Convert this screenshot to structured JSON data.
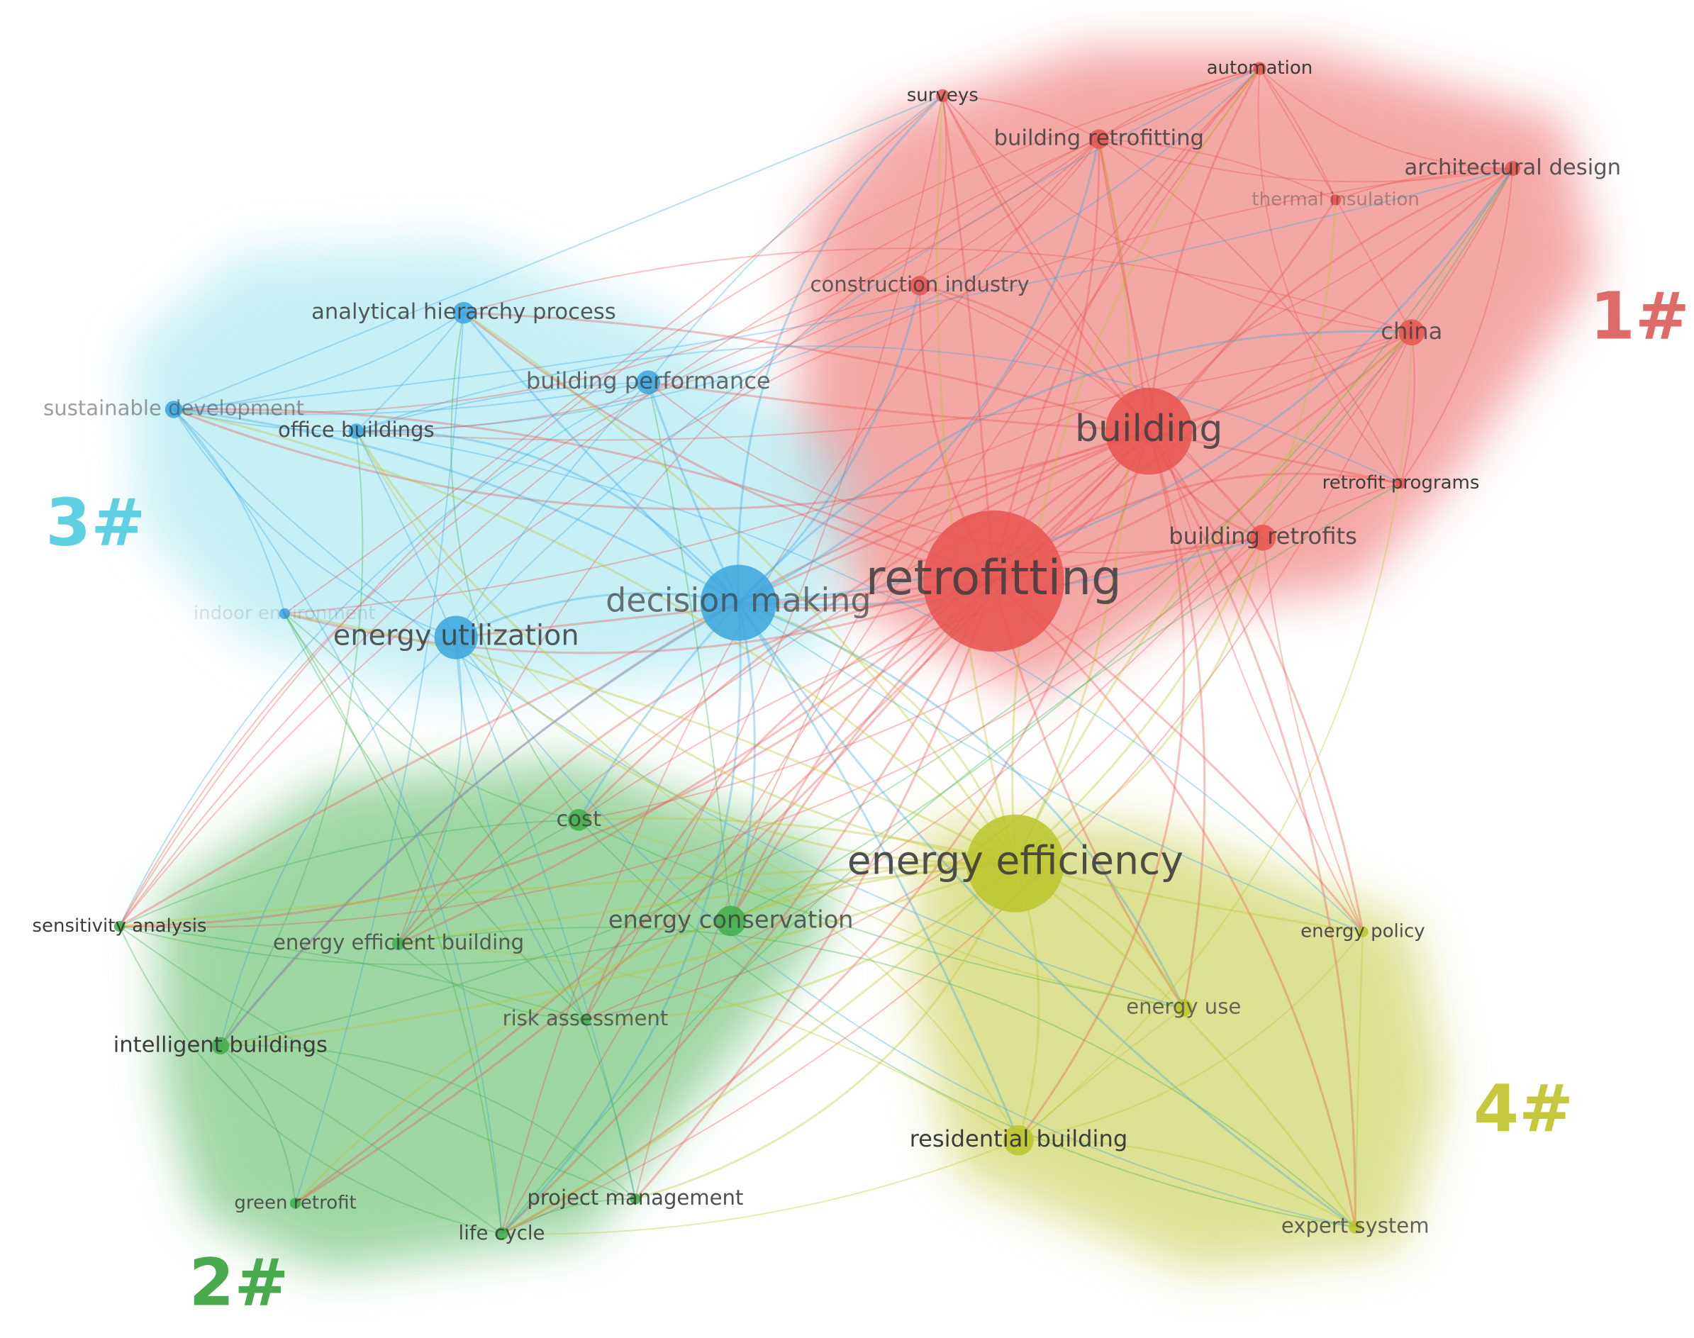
{
  "clusters": [
    {
      "label": "1#",
      "color": "#e8534f",
      "nodes": [
        "retrofitting",
        "building",
        "automation",
        "surveys",
        "building retrofitting",
        "architectural design",
        "thermal insulation",
        "construction industry",
        "china",
        "retrofit programs",
        "building retrofits"
      ]
    },
    {
      "label": "2#",
      "color": "#3fae4b",
      "nodes": [
        "cost",
        "sensitivity analysis",
        "energy efficient building",
        "energy conservation",
        "risk assessment",
        "intelligent buildings",
        "green retrofit",
        "life cycle",
        "project management"
      ]
    },
    {
      "label": "3#",
      "color": "#3aa6de",
      "nodes": [
        "analytical hierarchy process",
        "building performance",
        "sustainable development",
        "office buildings",
        "decision making",
        "energy utilization",
        "indoor environment"
      ]
    },
    {
      "label": "4#",
      "color": "#bcc42a",
      "nodes": [
        "energy efficiency",
        "energy policy",
        "energy use",
        "residential building",
        "expert system"
      ]
    }
  ]
}
